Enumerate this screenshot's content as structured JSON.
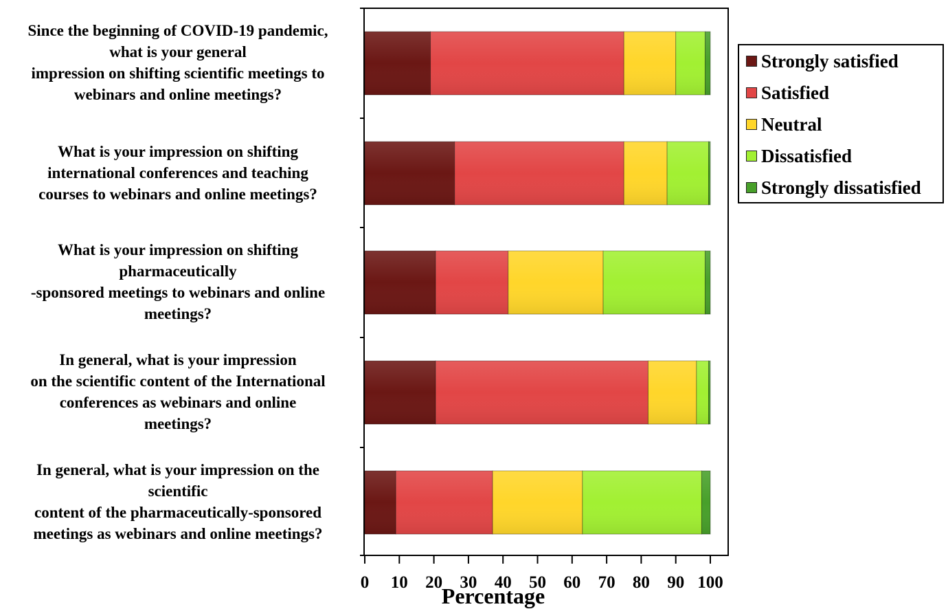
{
  "chart_data": {
    "type": "bar",
    "orientation": "horizontal",
    "stacked": true,
    "categories": [
      "Since the beginning of COVID-19 pandemic,\nwhat is your general\nimpression on shifting scientific meetings to\nwebinars and online meetings?",
      "What is your impression on shifting\ninternational conferences and teaching\ncourses to webinars and online meetings?",
      "What is your impression on shifting\npharmaceutically\n-sponsored meetings to webinars and online\nmeetings?",
      "In general, what is your impression\non the scientific content of the International\nconferences as webinars and online\nmeetings?",
      "In general, what is your impression on the\nscientific\ncontent of the pharmaceutically-sponsored\nmeetings as webinars and online meetings?"
    ],
    "series": [
      {
        "name": "Strongly satisfied",
        "color": "#6b1714",
        "values": [
          19,
          26,
          20.5,
          20.5,
          9
        ]
      },
      {
        "name": "Satisfied",
        "color": "#e24646",
        "values": [
          56,
          49,
          21,
          61.5,
          28
        ]
      },
      {
        "name": "Neutral",
        "color": "#ffd62a",
        "values": [
          15,
          12.5,
          27.5,
          14,
          26
        ]
      },
      {
        "name": "Dissatisfied",
        "color": "#a2f032",
        "values": [
          8.5,
          12,
          29.5,
          3.5,
          34.5
        ]
      },
      {
        "name": "Strongly dissatisfied",
        "color": "#48a02a",
        "values": [
          1.5,
          0.5,
          1.5,
          0.5,
          2.5
        ]
      }
    ],
    "xlabel": "Percentage",
    "ylabel": "",
    "xlim": [
      0,
      100
    ],
    "xticks": [
      0,
      10,
      20,
      30,
      40,
      50,
      60,
      70,
      80,
      90,
      100
    ],
    "legend_position": "right-top",
    "grid": false
  }
}
